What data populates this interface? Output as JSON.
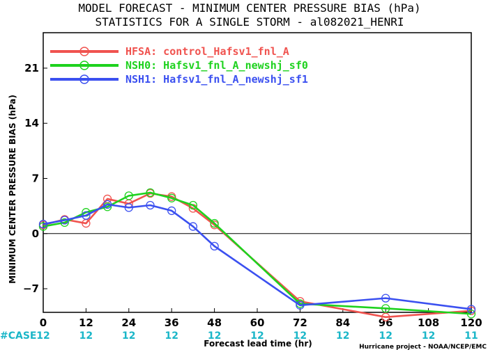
{
  "chart_data": {
    "type": "line",
    "title_lines": [
      "MODEL FORECAST - MINIMUM CENTER PRESSURE BIAS (hPa)",
      "STATISTICS FOR A SINGLE STORM - al082021_HENRI"
    ],
    "xlabel": "Forecast lead time (hr)",
    "ylabel": "MINIMUM CENTER PRESSURE BIAS (hPa)",
    "xlim": [
      0,
      120
    ],
    "ylim": [
      -10,
      25.5
    ],
    "x_ticks": [
      0,
      12,
      24,
      36,
      48,
      60,
      72,
      84,
      96,
      108,
      120
    ],
    "y_ticks": [
      -7,
      0,
      7,
      14,
      21
    ],
    "legend_position": "top-left",
    "series": [
      {
        "name": "HFSA: control_Hafsv1_fnl_A",
        "color": "#f0534f",
        "x": [
          0,
          6,
          12,
          18,
          24,
          30,
          36,
          42,
          48,
          72,
          96,
          120
        ],
        "y": [
          1.1,
          1.8,
          1.3,
          4.4,
          3.8,
          5.1,
          4.7,
          3.2,
          1.1,
          -8.6,
          -10.6,
          -9.8
        ]
      },
      {
        "name": "NSH0: Hafsv1_fnl_A_newshj_sf0",
        "color": "#1ed21e",
        "x": [
          0,
          6,
          12,
          18,
          24,
          30,
          36,
          42,
          48,
          72,
          96,
          120
        ],
        "y": [
          0.9,
          1.4,
          2.7,
          3.4,
          4.8,
          5.2,
          4.5,
          3.6,
          1.3,
          -8.9,
          -9.5,
          -10.2
        ]
      },
      {
        "name": "NSH1: Hafsv1_fnl_A_newshj_sf1",
        "color": "#3b50f0",
        "x": [
          0,
          6,
          12,
          18,
          24,
          30,
          36,
          42,
          48,
          72,
          96,
          120
        ],
        "y": [
          1.2,
          1.7,
          2.3,
          3.7,
          3.3,
          3.6,
          2.9,
          0.9,
          -1.6,
          -9.1,
          -8.2,
          -9.6
        ]
      }
    ],
    "case_label": "#CASE",
    "case_counts": [
      "12",
      "12",
      "12",
      "12",
      "12",
      "12",
      "12",
      "12",
      "12",
      "12",
      "11"
    ],
    "credit": "Hurricane project - NOAA/NCEP/EMC"
  }
}
